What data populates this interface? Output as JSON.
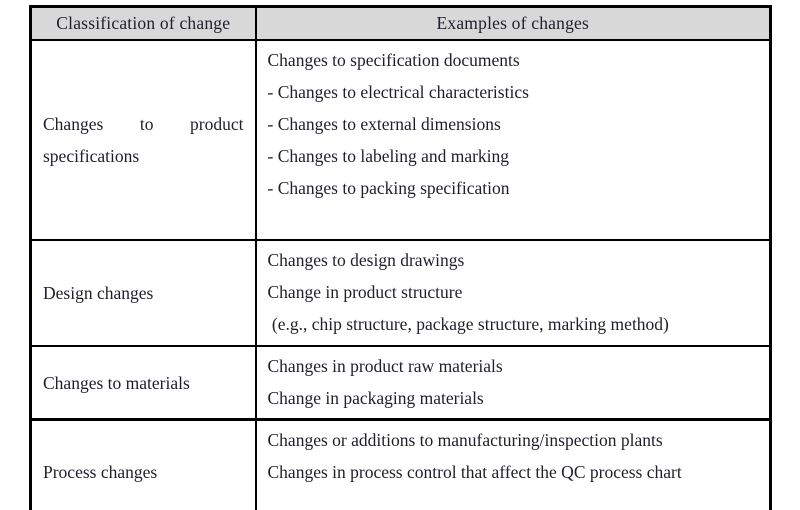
{
  "table": {
    "title": "Classification of changes table",
    "headers": {
      "classification": "Classification of change",
      "examples": "Examples of changes"
    },
    "rows": [
      {
        "classification": "Changes to product specifications",
        "examples": [
          "Changes to specification documents",
          "- Changes to electrical characteristics",
          "- Changes to external dimensions",
          "- Changes to labeling and marking",
          "- Changes to packing specification"
        ]
      },
      {
        "classification": "Design changes",
        "examples": [
          "Changes to design drawings",
          "Change in product structure",
          " (e.g., chip structure, package structure, marking method)"
        ]
      },
      {
        "classification": "Changes to materials",
        "examples": [
          "Changes in product raw materials",
          "Change in packaging materials"
        ]
      },
      {
        "classification": "Process changes",
        "examples": [
          "Changes or additions to manufacturing/inspection plants",
          "Changes in process control that affect the QC process chart"
        ]
      }
    ],
    "colors": {
      "header_bg": "#d8d8d8",
      "border": "#000000",
      "text": "#1e1f2b",
      "background": "#ffffff"
    }
  }
}
